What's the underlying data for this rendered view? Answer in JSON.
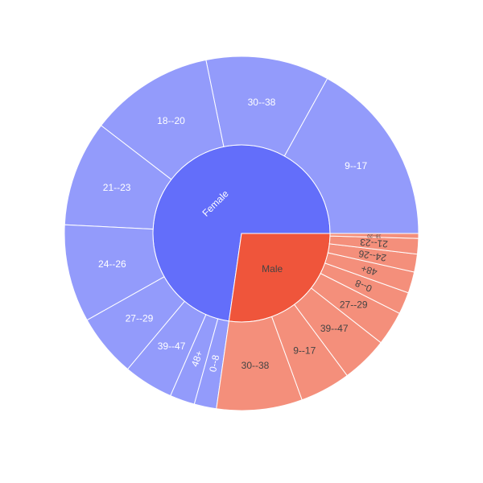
{
  "chart_data": {
    "type": "sunburst",
    "root_order": [
      "Female",
      "Male"
    ],
    "colors": {
      "Female": {
        "inner": "#636efa",
        "outer": "#939bfb"
      },
      "Male": {
        "inner": "#ef553b",
        "outer": "#f48f7b"
      },
      "inner_label": "#ffffff",
      "female_outer_label": "#ffffff",
      "male_outer_label": "#444444",
      "stroke": "#ffffff"
    },
    "hierarchy": [
      {
        "name": "Female",
        "value": 1211,
        "children": [
          {
            "name": "9--17",
            "value": 209
          },
          {
            "name": "30--38",
            "value": 139
          },
          {
            "name": "18--20",
            "value": 140
          },
          {
            "name": "21--23",
            "value": 119
          },
          {
            "name": "24--26",
            "value": 110
          },
          {
            "name": "27--29",
            "value": 71
          },
          {
            "name": "39--47",
            "value": 56
          },
          {
            "name": "48+",
            "value": 28
          },
          {
            "name": "0--8",
            "value": 25
          }
        ]
      },
      {
        "name": "Male",
        "value": 454,
        "children": [
          {
            "name": "30--38",
            "value": 105
          },
          {
            "name": "9--17",
            "value": 62
          },
          {
            "name": "39--47",
            "value": 57
          },
          {
            "name": "27--29",
            "value": 42
          },
          {
            "name": "0--8",
            "value": 27
          },
          {
            "name": "48+",
            "value": 26
          },
          {
            "name": "24--26",
            "value": 22
          },
          {
            "name": "21--23",
            "value": 19
          },
          {
            "name": "18--20",
            "value": 6
          }
        ]
      }
    ]
  }
}
